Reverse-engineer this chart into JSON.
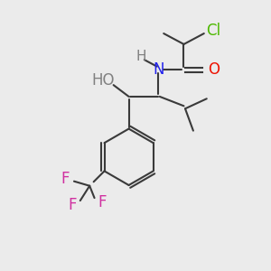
{
  "bg_color": "#ebebeb",
  "bond_color": "#3a3a3a",
  "atoms": {
    "Cl": {
      "color": "#4cb800"
    },
    "O_carbonyl": {
      "color": "#ee1100"
    },
    "N": {
      "color": "#2222ee"
    },
    "H_N": {
      "color": "#808080"
    },
    "O_OH": {
      "color": "#ee1100"
    },
    "HO": {
      "color": "#808080"
    },
    "F": {
      "color": "#d030a0"
    }
  },
  "font_size": 12,
  "small_font_size": 11,
  "lw": 1.5
}
